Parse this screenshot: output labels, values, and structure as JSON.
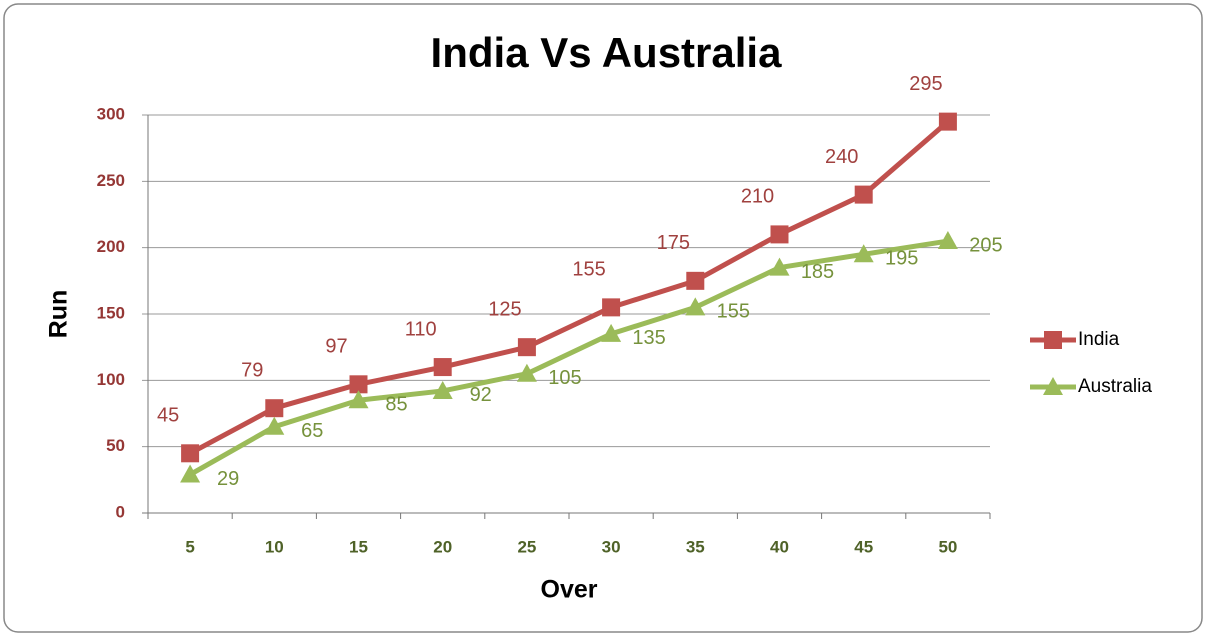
{
  "chart_data": {
    "type": "line",
    "title": "India Vs Australia",
    "x_label": "Over",
    "y_label": "Run",
    "categories": [
      5,
      10,
      15,
      20,
      25,
      30,
      35,
      40,
      45,
      50
    ],
    "series": [
      {
        "name": "India",
        "color": "#c0504d",
        "marker": "square",
        "values": [
          45,
          79,
          97,
          110,
          125,
          155,
          175,
          210,
          240,
          295
        ]
      },
      {
        "name": "Australia",
        "color": "#9bbb59",
        "marker": "triangle",
        "values": [
          29,
          65,
          85,
          92,
          105,
          135,
          155,
          185,
          195,
          205
        ]
      }
    ],
    "ylim": [
      0,
      300
    ],
    "yticks": [
      0,
      50,
      100,
      150,
      200,
      250,
      300
    ],
    "grid": true,
    "legend": "right"
  }
}
